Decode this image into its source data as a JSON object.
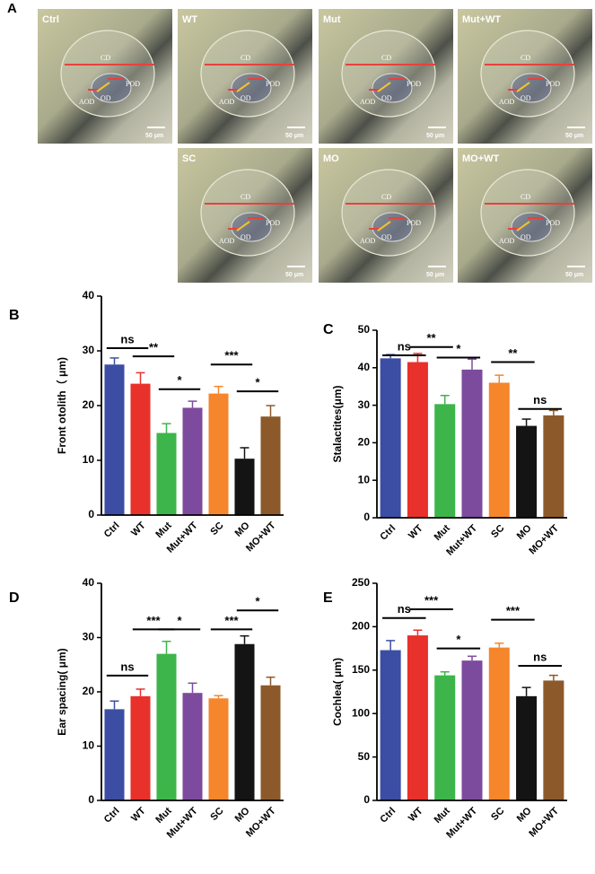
{
  "panel_a": {
    "label": "A",
    "images": [
      {
        "label": "Ctrl",
        "cd": "CD",
        "pod": "POD",
        "od": "OD",
        "aod": "AOD",
        "scale_bar": "50 μm"
      },
      {
        "label": "WT",
        "cd": "CD",
        "pod": "POD",
        "od": "OD",
        "aod": "AOD",
        "scale_bar": "50 μm"
      },
      {
        "label": "Mut",
        "cd": "CD",
        "pod": "POD",
        "od": "OD",
        "aod": "AOD",
        "scale_bar": "50 μm"
      },
      {
        "label": "Mut+WT",
        "cd": "CD",
        "pod": "POD",
        "od": "OD",
        "aod": "AOD",
        "scale_bar": "50 μm"
      },
      {
        "label": "SC",
        "cd": "CD",
        "pod": "POD",
        "od": "OD",
        "aod": "AOD",
        "scale_bar": "50 μm"
      },
      {
        "label": "MO",
        "cd": "CD",
        "pod": "POD",
        "od": "OD",
        "aod": "AOD",
        "scale_bar": "50 μm"
      },
      {
        "label": "MO+WT",
        "cd": "CD",
        "pod": "POD",
        "od": "OD",
        "aod": "AOD",
        "scale_bar": "50 μm"
      }
    ]
  },
  "chart_data": [
    {
      "type": "bar",
      "panel_label": "B",
      "y_label": "Front otolith（ μm)",
      "categories": [
        "Ctrl",
        "WT",
        "Mut",
        "Mut+WT",
        "SC",
        "MO",
        "MO+WT"
      ],
      "values": [
        27.5,
        24,
        15,
        19.6,
        22.2,
        10.3,
        18
      ],
      "errors": [
        1.2,
        2,
        1.7,
        1.2,
        1.3,
        2,
        2
      ],
      "colors": [
        "#3b4ea3",
        "#e8312b",
        "#3db54a",
        "#7d4b9d",
        "#f5862c",
        "#141414",
        "#8c5a2a"
      ],
      "ylim": [
        0,
        40
      ],
      "yticks": [
        0,
        10,
        20,
        30,
        40
      ],
      "annotations": [
        {
          "text": "ns",
          "from": 0,
          "to": 1,
          "y": 30.5
        },
        {
          "text": "**",
          "from": 1,
          "to": 2,
          "y": 29
        },
        {
          "text": "*",
          "from": 2,
          "to": 3,
          "y": 23
        },
        {
          "text": "***",
          "from": 4,
          "to": 5,
          "y": 27.5
        },
        {
          "text": "*",
          "from": 5,
          "to": 6,
          "y": 22.6
        }
      ]
    },
    {
      "type": "bar",
      "panel_label": "C",
      "y_label": "Stalactites(μm)",
      "categories": [
        "Ctrl",
        "WT",
        "Mut",
        "Mut+WT",
        "SC",
        "MO",
        "MO+WT"
      ],
      "values": [
        42.5,
        41.5,
        30.3,
        39.5,
        36,
        24.5,
        27.3
      ],
      "errors": [
        1,
        2.3,
        2.3,
        2.8,
        2,
        1.8,
        1.3
      ],
      "colors": [
        "#3b4ea3",
        "#e8312b",
        "#3db54a",
        "#7d4b9d",
        "#f5862c",
        "#141414",
        "#8c5a2a"
      ],
      "ylim": [
        0,
        50
      ],
      "yticks": [
        0,
        10,
        20,
        30,
        40,
        50
      ],
      "annotations": [
        {
          "text": "ns",
          "from": 0,
          "to": 1,
          "y": 43.3
        },
        {
          "text": "**",
          "from": 1,
          "to": 2,
          "y": 45.5
        },
        {
          "text": "*",
          "from": 2,
          "to": 3,
          "y": 42.7
        },
        {
          "text": "**",
          "from": 4,
          "to": 5,
          "y": 41.5
        },
        {
          "text": "ns",
          "from": 5,
          "to": 6,
          "y": 29
        }
      ]
    },
    {
      "type": "bar",
      "panel_label": "D",
      "y_label": "Ear spacing( μm)",
      "categories": [
        "Ctrl",
        "WT",
        "Mut",
        "Mut+WT",
        "SC",
        "MO",
        "MO+WT"
      ],
      "values": [
        16.8,
        19.2,
        27,
        19.8,
        18.8,
        28.8,
        21.2
      ],
      "errors": [
        1.5,
        1.3,
        2.3,
        1.8,
        0.5,
        1.5,
        1.5
      ],
      "colors": [
        "#3b4ea3",
        "#e8312b",
        "#3db54a",
        "#7d4b9d",
        "#f5862c",
        "#141414",
        "#8c5a2a"
      ],
      "ylim": [
        0,
        40
      ],
      "yticks": [
        0,
        10,
        20,
        30,
        40
      ],
      "annotations": [
        {
          "text": "ns",
          "from": 0,
          "to": 1,
          "y": 23
        },
        {
          "text": "***",
          "from": 1,
          "to": 2,
          "y": 31.5
        },
        {
          "text": "*",
          "from": 2,
          "to": 3,
          "y": 31.5
        },
        {
          "text": "***",
          "from": 4,
          "to": 5,
          "y": 31.5
        },
        {
          "text": "*",
          "from": 5,
          "to": 6,
          "y": 35
        }
      ]
    },
    {
      "type": "bar",
      "panel_label": "E",
      "y_label": "Cochlea( μm)",
      "categories": [
        "Ctrl",
        "WT",
        "Mut",
        "Mut+WT",
        "SC",
        "MO",
        "MO+WT"
      ],
      "values": [
        173,
        190,
        144,
        161,
        176,
        120,
        138
      ],
      "errors": [
        11,
        6,
        4,
        5,
        5,
        10,
        6
      ],
      "colors": [
        "#3b4ea3",
        "#e8312b",
        "#3db54a",
        "#7d4b9d",
        "#f5862c",
        "#141414",
        "#8c5a2a"
      ],
      "ylim": [
        0,
        250
      ],
      "yticks": [
        0,
        50,
        100,
        150,
        200,
        250
      ],
      "annotations": [
        {
          "text": "ns",
          "from": 0,
          "to": 1,
          "y": 210
        },
        {
          "text": "***",
          "from": 1,
          "to": 2,
          "y": 220
        },
        {
          "text": "*",
          "from": 2,
          "to": 3,
          "y": 175
        },
        {
          "text": "***",
          "from": 4,
          "to": 5,
          "y": 208
        },
        {
          "text": "ns",
          "from": 5,
          "to": 6,
          "y": 155
        }
      ]
    }
  ]
}
